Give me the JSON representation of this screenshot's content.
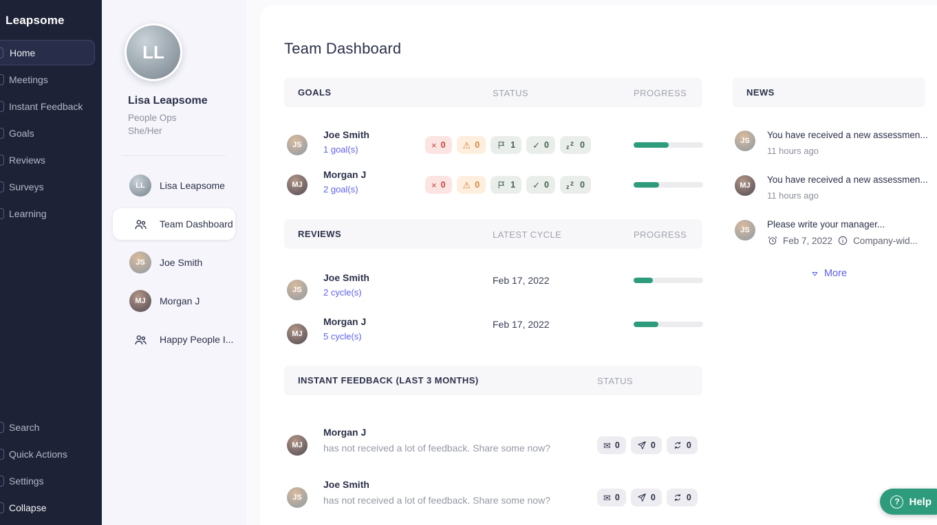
{
  "brand": {
    "logo": "Leapsome"
  },
  "sidebar": {
    "items": [
      {
        "label": "Home"
      },
      {
        "label": "Meetings"
      },
      {
        "label": "Instant Feedback"
      },
      {
        "label": "Goals"
      },
      {
        "label": "Reviews"
      },
      {
        "label": "Surveys"
      },
      {
        "label": "Learning"
      }
    ],
    "bottom_items": [
      {
        "label": "Search"
      },
      {
        "label": "Quick Actions"
      },
      {
        "label": "Settings"
      },
      {
        "label": "Collapse"
      }
    ]
  },
  "profile": {
    "name": "Lisa Leapsome",
    "role": "People Ops",
    "pronouns": "She/Her",
    "initials": "LL"
  },
  "team_list": [
    {
      "label": "Lisa Leapsome",
      "initials": "LL"
    },
    {
      "label": "Team Dashboard"
    },
    {
      "label": "Joe Smith",
      "initials": "JS"
    },
    {
      "label": "Morgan J",
      "initials": "MJ"
    },
    {
      "label": "Happy People I..."
    }
  ],
  "page": {
    "title": "Team Dashboard"
  },
  "icons": {
    "x": "×",
    "warning": "⚠",
    "check": "✓",
    "envelope": "✉",
    "snooze_a": "z",
    "snooze_b": "z",
    "help": "?"
  },
  "goals": {
    "header": "GOALS",
    "col_status": "STATUS",
    "col_progress": "PROGRESS",
    "rows": [
      {
        "name": "Joe Smith",
        "link": "1 goal(s)",
        "initials": "JS",
        "counts": {
          "x": "0",
          "warning": "0",
          "flag": "1",
          "check": "0",
          "snooze": "0"
        },
        "progress": 50
      },
      {
        "name": "Morgan J",
        "link": "2 goal(s)",
        "initials": "MJ",
        "counts": {
          "x": "0",
          "warning": "0",
          "flag": "1",
          "check": "0",
          "snooze": "0"
        },
        "progress": 37
      }
    ]
  },
  "reviews": {
    "header": "REVIEWS",
    "col_cycle": "LATEST CYCLE",
    "col_progress": "PROGRESS",
    "rows": [
      {
        "name": "Joe Smith",
        "link": "2 cycle(s)",
        "initials": "JS",
        "latest_cycle": "Feb 17, 2022",
        "progress": 28
      },
      {
        "name": "Morgan J",
        "link": "5 cycle(s)",
        "initials": "MJ",
        "latest_cycle": "Feb 17, 2022",
        "progress": 36
      }
    ]
  },
  "instant_feedback": {
    "header": "INSTANT FEEDBACK (LAST 3 MONTHS)",
    "col_status": "STATUS",
    "rows": [
      {
        "name": "Morgan J",
        "initials": "MJ",
        "message": "has not received a lot of feedback. Share some now?",
        "counts": {
          "received": "0",
          "given": "0",
          "exchanged": "0"
        }
      },
      {
        "name": "Joe Smith",
        "initials": "JS",
        "message": "has not received a lot of feedback. Share some now?",
        "counts": {
          "received": "0",
          "given": "0",
          "exchanged": "0"
        }
      }
    ]
  },
  "news": {
    "header": "NEWS",
    "items": [
      {
        "text": "You have received a new assessmen...",
        "meta": "11 hours ago",
        "initials": "JS"
      },
      {
        "text": "You have received a new assessmen...",
        "meta": "11 hours ago",
        "initials": "MJ"
      },
      {
        "text": "Please write your manager...",
        "date": "Feb 7, 2022",
        "scope": "Company-wid...",
        "initials": "JS"
      }
    ],
    "more_label": "More"
  },
  "help": {
    "label": "Help"
  },
  "colors": {
    "accent_purple": "#5d5fef",
    "teal": "#2e9c7c",
    "sidebar_dark": "#1d2236",
    "sidebar_light": "#f5f5fb",
    "badge_red": "#fbe4e2",
    "badge_orange": "#fdeedd",
    "badge_sage": "#eaeeeb",
    "badge_gray": "#ededf1"
  }
}
